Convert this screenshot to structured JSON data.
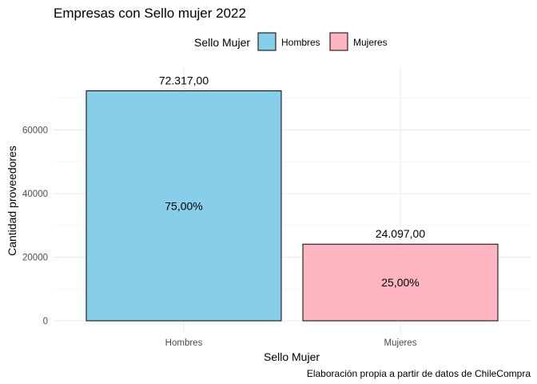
{
  "chart_data": {
    "type": "bar",
    "title": "Empresas con Sello mujer 2022",
    "xlabel": "Sello Mujer",
    "ylabel": "Cantidad proveedores",
    "caption": "Elaboración propia a partir de datos de ChileCompra",
    "categories": [
      "Hombres",
      "Mujeres"
    ],
    "values": [
      72317,
      24097
    ],
    "value_labels": [
      "72.317,00",
      "24.097,00"
    ],
    "percent_labels": [
      "75,00%",
      "25,00%"
    ],
    "colors": [
      "#87CEEB",
      "#FFB6C1"
    ],
    "ylim": [
      0,
      75000
    ],
    "yticks": [
      0,
      20000,
      40000,
      60000
    ],
    "ytick_labels": [
      "0",
      "20000",
      "40000",
      "60000"
    ],
    "grid": true,
    "legend": {
      "title": "Sello Mujer",
      "position": "top",
      "items": [
        "Hombres",
        "Mujeres"
      ]
    }
  }
}
